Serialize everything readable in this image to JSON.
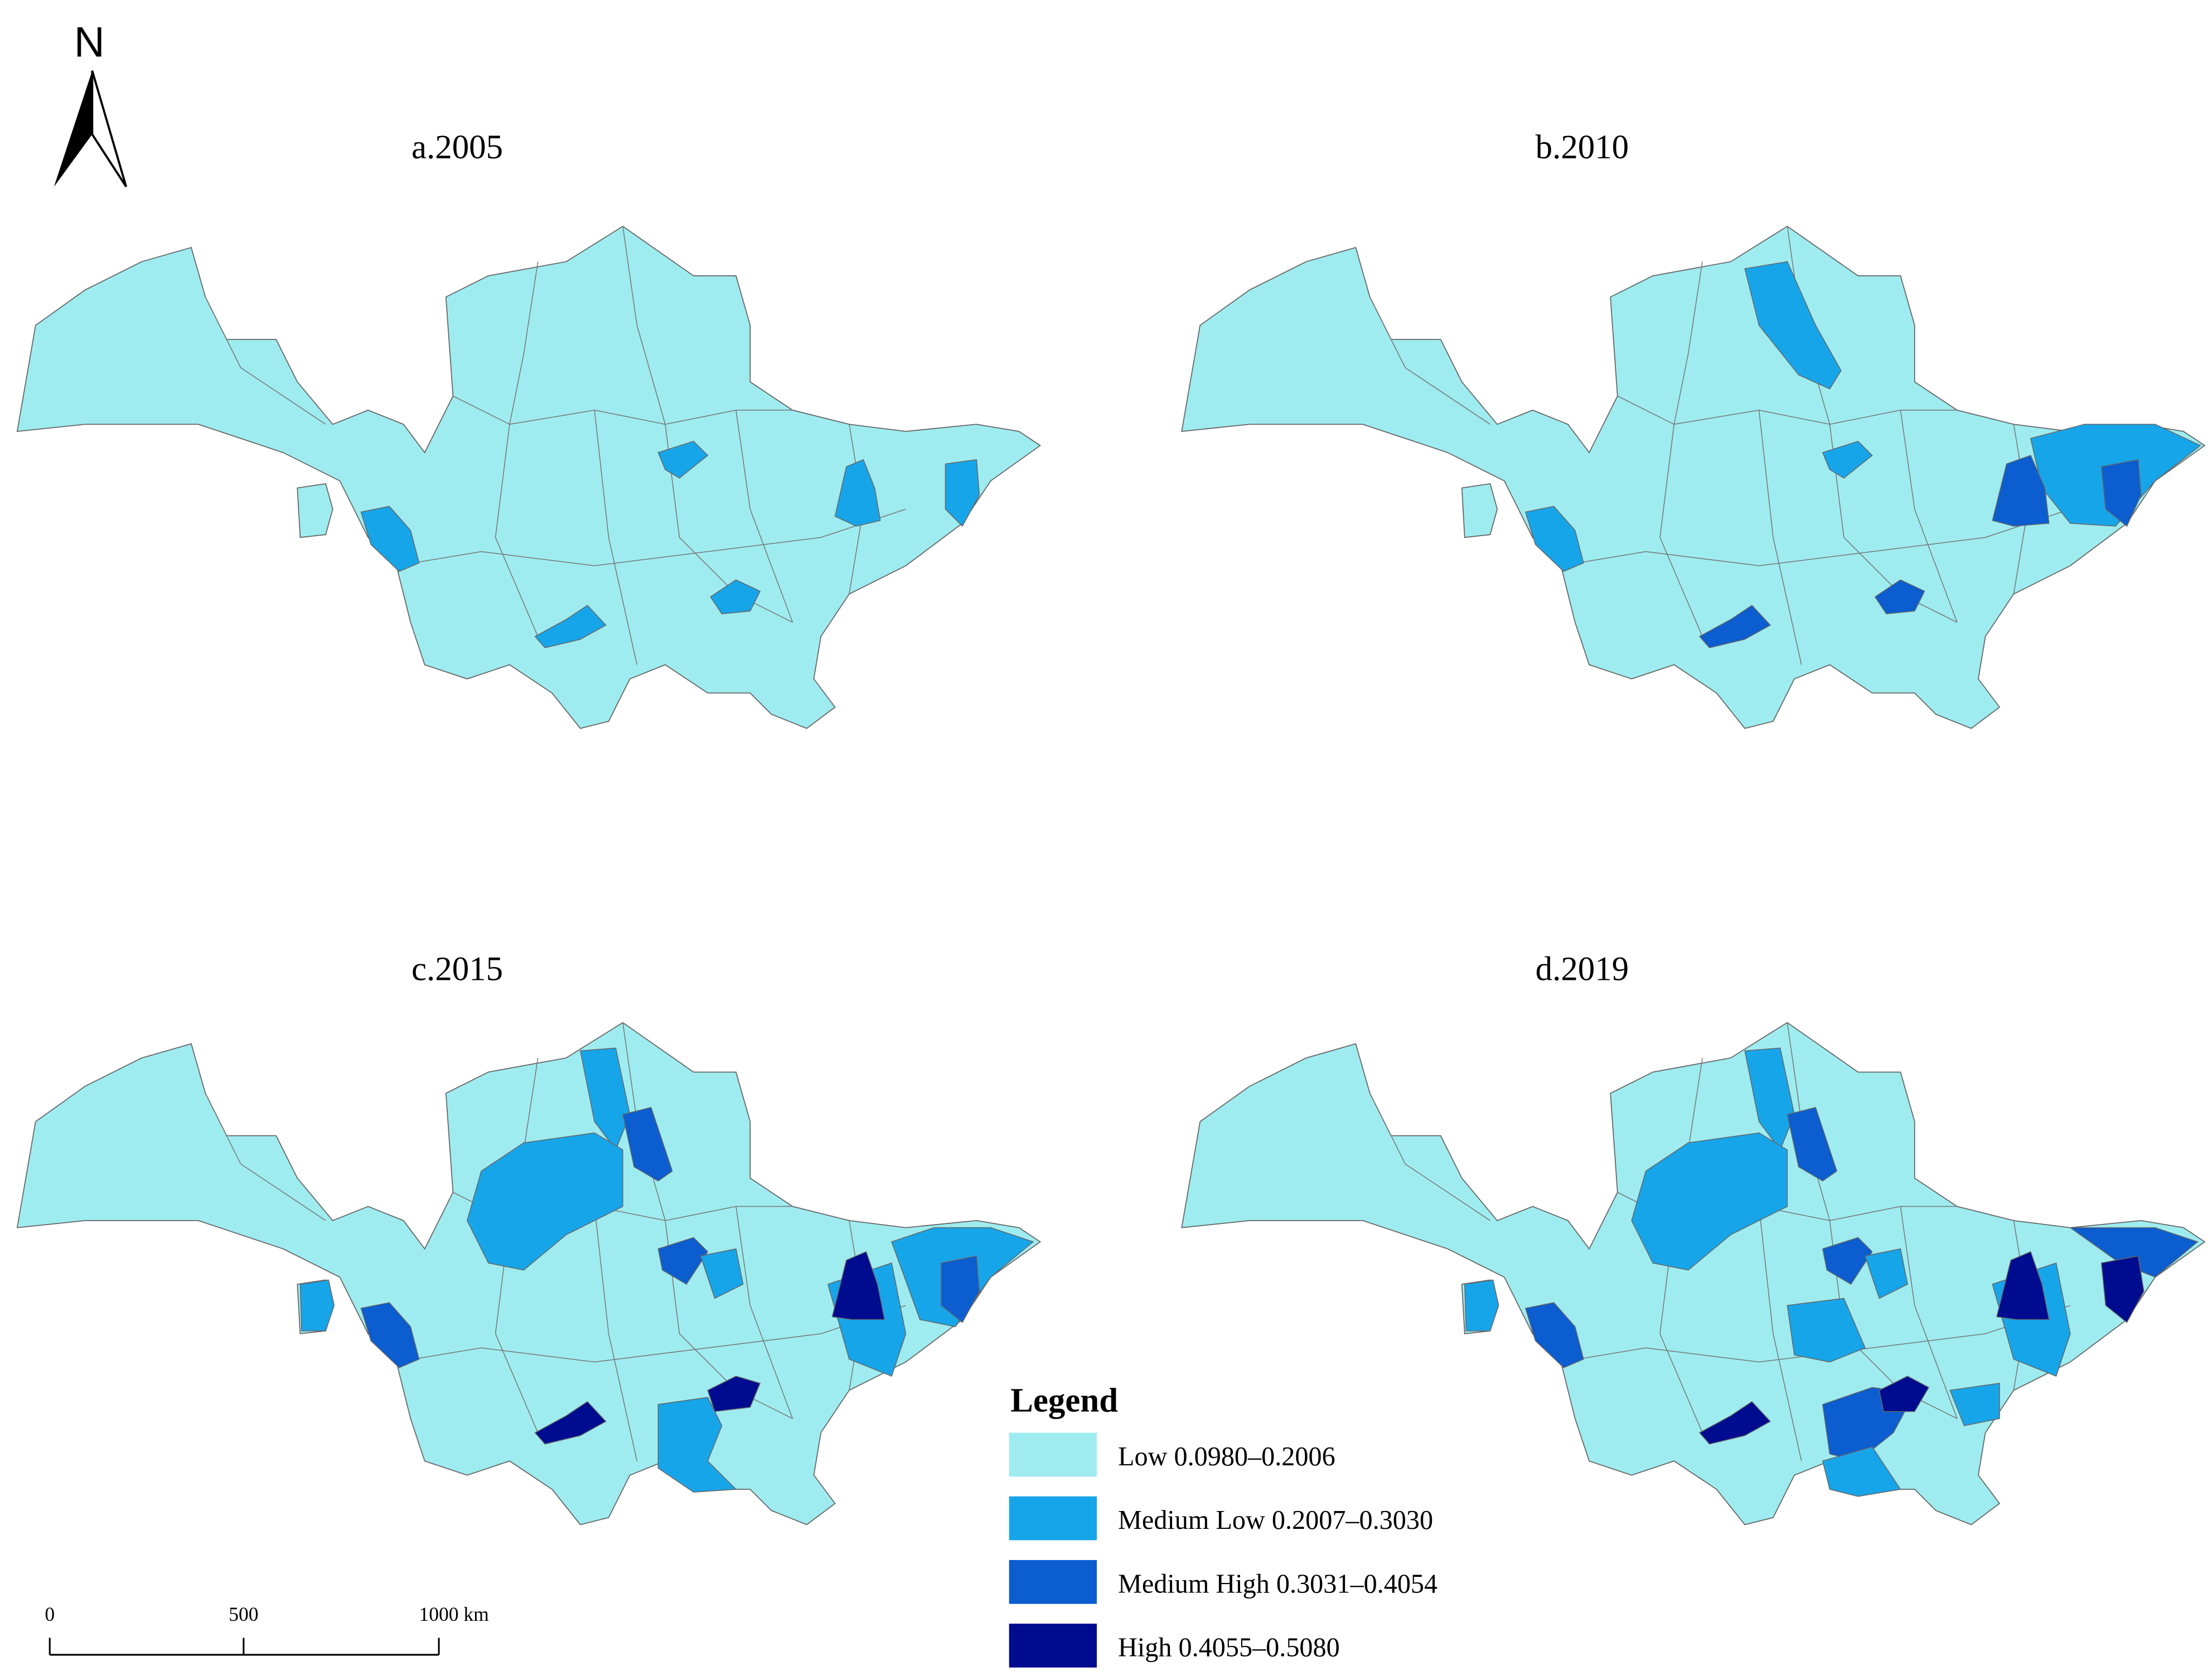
{
  "north_arrow": {
    "label": "N"
  },
  "panels": [
    {
      "title": "a.2005"
    },
    {
      "title": "b.2010"
    },
    {
      "title": "c.2015"
    },
    {
      "title": "d.2019"
    }
  ],
  "legend": {
    "title": "Legend",
    "items": [
      {
        "label": "Low 0.0980–0.2006",
        "color": "#9eecf0"
      },
      {
        "label": "Medium Low 0.2007–0.3030",
        "color": "#17a5ea"
      },
      {
        "label": "Medium High 0.3031–0.4054",
        "color": "#0b5dd0"
      },
      {
        "label": "High 0.4055–0.5080",
        "color": "#000c8f"
      }
    ]
  },
  "scale_bar": {
    "labels": [
      "0",
      "500",
      "1000 km"
    ]
  }
}
